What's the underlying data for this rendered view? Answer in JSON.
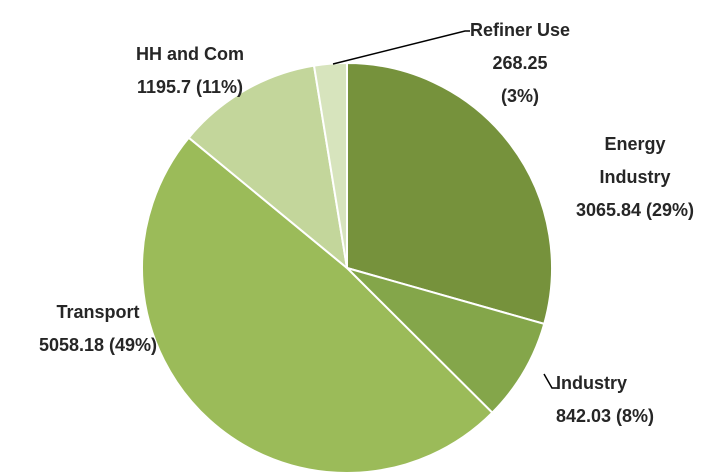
{
  "chart_data": {
    "type": "pie",
    "categories": [
      "Energy Industry",
      "Industry",
      "Transport",
      "HH and Com",
      "Refiner Use"
    ],
    "values": [
      3065.84,
      842.03,
      5058.18,
      1195.7,
      268.25
    ],
    "value_labels": [
      "3065.84 (29%)",
      "842.03 (8%)",
      "5058.18 (49%)",
      "1195.7 (11%)",
      "268.25 (3%)"
    ],
    "colors": [
      "#76923c",
      "#84a64a",
      "#9bbb59",
      "#c3d69b",
      "#d7e4bd"
    ]
  }
}
